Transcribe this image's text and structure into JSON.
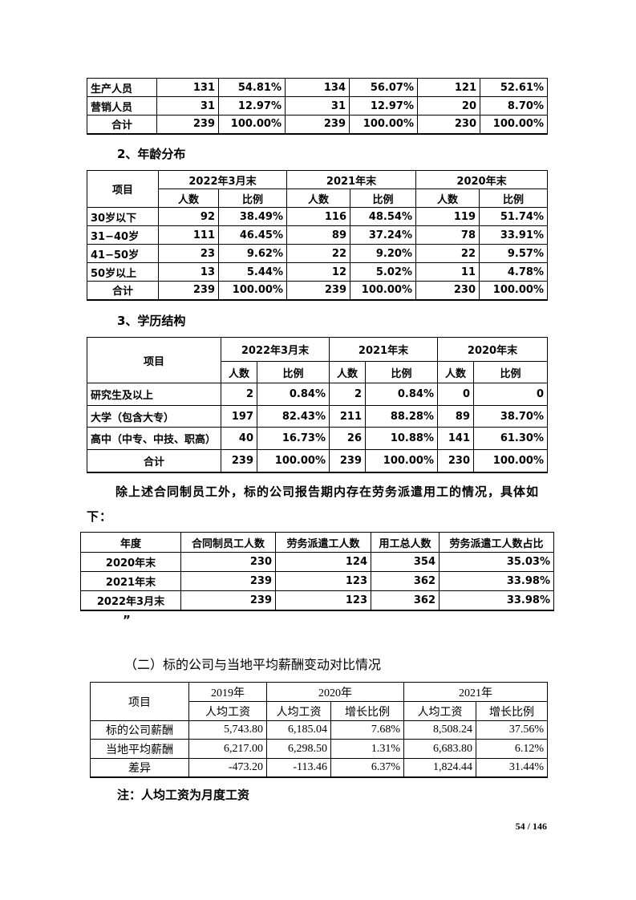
{
  "table1": {
    "rows": [
      [
        "生产人员",
        "131",
        "54.81%",
        "134",
        "56.07%",
        "121",
        "52.61%"
      ],
      [
        "营销人员",
        "31",
        "12.97%",
        "31",
        "12.97%",
        "20",
        "8.70%"
      ],
      [
        "合计",
        "239",
        "100.00%",
        "239",
        "100.00%",
        "230",
        "100.00%"
      ]
    ]
  },
  "heading_age": "2、年龄分布",
  "table2": {
    "header": [
      [
        "项目",
        "2022年3月末",
        "2021年末",
        "2020年末"
      ],
      [
        "人数",
        "比例",
        "人数",
        "比例",
        "人数",
        "比例"
      ]
    ],
    "rows": [
      [
        "30岁以下",
        "92",
        "38.49%",
        "116",
        "48.54%",
        "119",
        "51.74%"
      ],
      [
        "31−40岁",
        "111",
        "46.45%",
        "89",
        "37.24%",
        "78",
        "33.91%"
      ],
      [
        "41−50岁",
        "23",
        "9.62%",
        "22",
        "9.20%",
        "22",
        "9.57%"
      ],
      [
        "50岁以上",
        "13",
        "5.44%",
        "12",
        "5.02%",
        "11",
        "4.78%"
      ],
      [
        "合计",
        "239",
        "100.00%",
        "239",
        "100.00%",
        "230",
        "100.00%"
      ]
    ]
  },
  "heading_edu": "3、学历结构",
  "table3": {
    "header": [
      [
        "项目",
        "2022年3月末",
        "2021年末",
        "2020年末"
      ],
      [
        "人数",
        "比例",
        "人数",
        "比例",
        "人数",
        "比例"
      ]
    ],
    "rows": [
      [
        "研究生及以上",
        "2",
        "0.84%",
        "2",
        "0.84%",
        "0",
        "0"
      ],
      [
        "大学（包含大专）",
        "197",
        "82.43%",
        "211",
        "88.28%",
        "89",
        "38.70%"
      ],
      [
        "高中（中专、中技、职高）",
        "40",
        "16.73%",
        "26",
        "10.88%",
        "141",
        "61.30%"
      ],
      [
        "合计",
        "239",
        "100.00%",
        "239",
        "100.00%",
        "230",
        "100.00%"
      ]
    ]
  },
  "paragraph": "除上述合同制员工外，标的公司报告期内存在劳务派遣用工的情况，具体如下：",
  "table4": {
    "header": [
      [
        "年度",
        "合同制员工人数",
        "劳务派遣工人数",
        "用工总人数",
        "劳务派遣工人数占比"
      ]
    ],
    "rows": [
      [
        "2020年末",
        "230",
        "124",
        "354",
        "35.03%"
      ],
      [
        "2021年末",
        "239",
        "123",
        "362",
        "33.98%"
      ],
      [
        "2022年3月末",
        "239",
        "123",
        "362",
        "33.98%"
      ]
    ]
  },
  "quote_mark": "”",
  "heading_salary": "（二）标的公司与当地平均薪酬变动对比情况",
  "table5": {
    "header": [
      [
        "项目",
        "2019年",
        "2020年",
        "2021年"
      ],
      [
        "人均工资",
        "人均工资",
        "增长比例",
        "人均工资",
        "增长比例"
      ]
    ],
    "rows": [
      [
        "标的公司薪酬",
        "5,743.80",
        "6,185.04",
        "7.68%",
        "8,508.24",
        "37.56%"
      ],
      [
        "当地平均薪酬",
        "6,217.00",
        "6,298.50",
        "1.31%",
        "6,683.80",
        "6.12%"
      ],
      [
        "差异",
        "-473.20",
        "-113.46",
        "6.37%",
        "1,824.44",
        "31.44%"
      ]
    ]
  },
  "note": "注：人均工资为月度工资",
  "page_number": "54 / 146"
}
